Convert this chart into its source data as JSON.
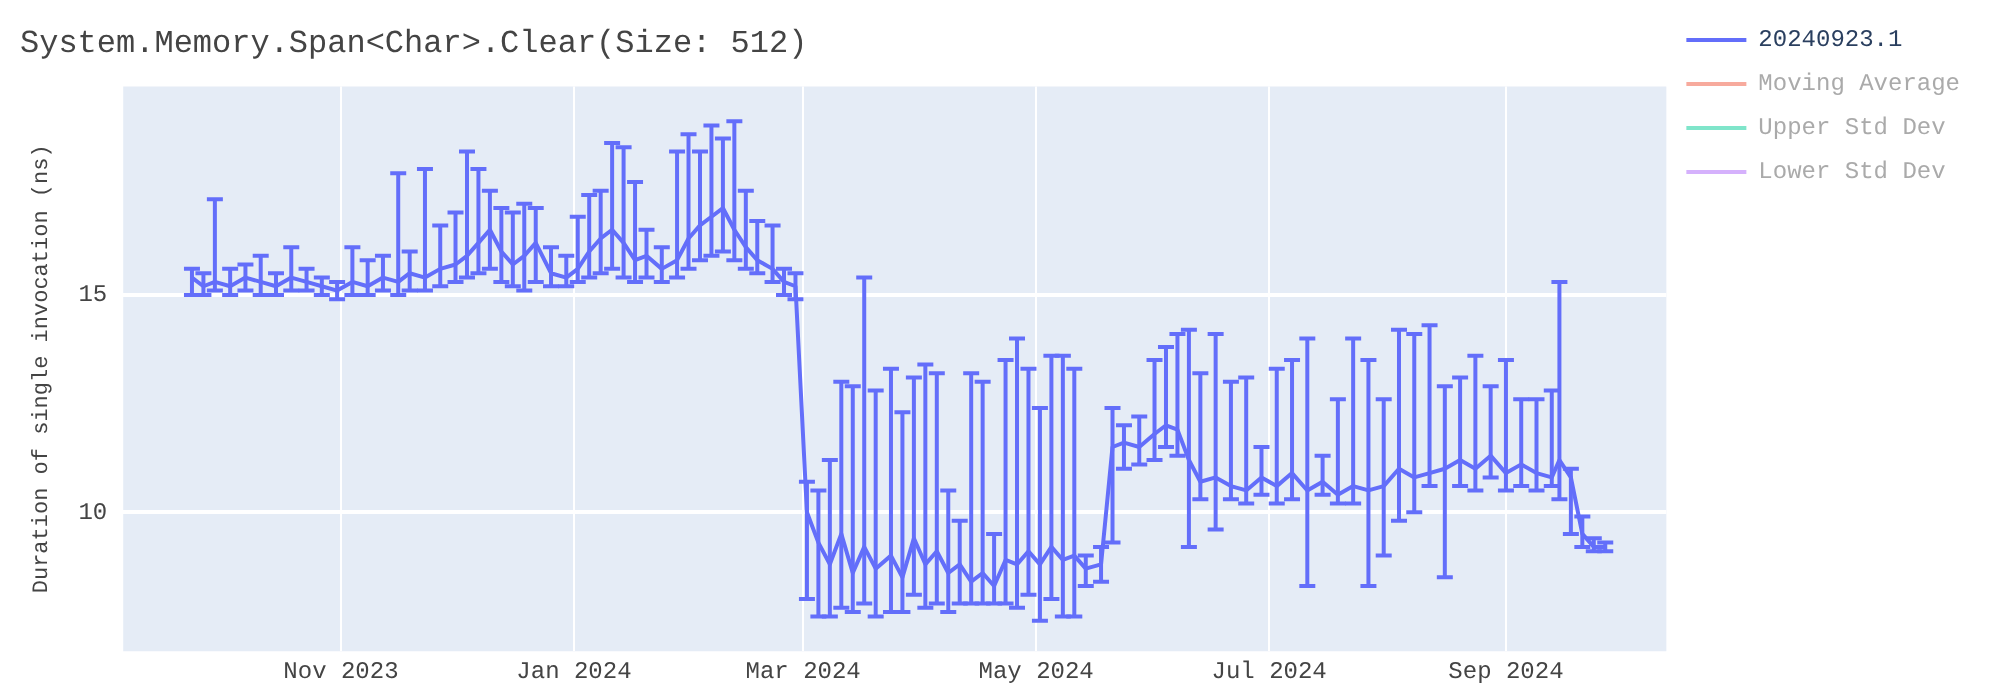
{
  "chart_data": {
    "type": "line",
    "title": "System.Memory.Span<Char>.Clear(Size: 512)",
    "ylabel": "Duration of single invocation (ns)",
    "grid": true,
    "legend": "top right",
    "marker": "none",
    "line_style": "solid",
    "xlim": [
      "2023-09-05",
      "2024-10-13"
    ],
    "xticks": [
      {
        "value": "2023-11-01",
        "label": "Nov 2023"
      },
      {
        "value": "2024-01-01",
        "label": "Jan 2024"
      },
      {
        "value": "2024-03-01",
        "label": "Mar 2024"
      },
      {
        "value": "2024-05-01",
        "label": "May 2024"
      },
      {
        "value": "2024-07-01",
        "label": "Jul 2024"
      },
      {
        "value": "2024-09-01",
        "label": "Sep 2024"
      }
    ],
    "ylim": [
      6.8,
      19.8
    ],
    "yticks": [
      10,
      15
    ],
    "x": [
      "2023-09-23",
      "2023-09-26",
      "2023-09-29",
      "2023-10-03",
      "2023-10-07",
      "2023-10-11",
      "2023-10-15",
      "2023-10-19",
      "2023-10-23",
      "2023-10-27",
      "2023-10-31",
      "2023-11-04",
      "2023-11-08",
      "2023-11-12",
      "2023-11-16",
      "2023-11-19",
      "2023-11-23",
      "2023-11-27",
      "2023-12-01",
      "2023-12-04",
      "2023-12-07",
      "2023-12-10",
      "2023-12-13",
      "2023-12-16",
      "2023-12-19",
      "2023-12-22",
      "2023-12-26",
      "2023-12-30",
      "2024-01-02",
      "2024-01-05",
      "2024-01-08",
      "2024-01-11",
      "2024-01-14",
      "2024-01-17",
      "2024-01-20",
      "2024-01-24",
      "2024-01-28",
      "2024-01-31",
      "2024-02-03",
      "2024-02-06",
      "2024-02-09",
      "2024-02-12",
      "2024-02-15",
      "2024-02-18",
      "2024-02-22",
      "2024-02-25",
      "2024-02-28",
      "2024-03-02",
      "2024-03-05",
      "2024-03-08",
      "2024-03-11",
      "2024-03-14",
      "2024-03-17",
      "2024-03-20",
      "2024-03-24",
      "2024-03-27",
      "2024-03-30",
      "2024-04-02",
      "2024-04-05",
      "2024-04-08",
      "2024-04-11",
      "2024-04-14",
      "2024-04-17",
      "2024-04-20",
      "2024-04-23",
      "2024-04-26",
      "2024-04-29",
      "2024-05-02",
      "2024-05-05",
      "2024-05-08",
      "2024-05-11",
      "2024-05-14",
      "2024-05-18",
      "2024-05-21",
      "2024-05-24",
      "2024-05-28",
      "2024-06-01",
      "2024-06-04",
      "2024-06-07",
      "2024-06-10",
      "2024-06-13",
      "2024-06-17",
      "2024-06-21",
      "2024-06-25",
      "2024-06-29",
      "2024-07-03",
      "2024-07-07",
      "2024-07-11",
      "2024-07-15",
      "2024-07-19",
      "2024-07-23",
      "2024-07-27",
      "2024-07-31",
      "2024-08-04",
      "2024-08-08",
      "2024-08-12",
      "2024-08-16",
      "2024-08-20",
      "2024-08-24",
      "2024-08-28",
      "2024-09-01",
      "2024-09-05",
      "2024-09-09",
      "2024-09-13",
      "2024-09-15",
      "2024-09-18",
      "2024-09-21",
      "2024-09-24",
      "2024-09-27"
    ],
    "series": [
      {
        "name": "20240923.1",
        "color": "#636efa",
        "values": [
          15.4,
          15.2,
          15.3,
          15.2,
          15.4,
          15.3,
          15.2,
          15.4,
          15.3,
          15.2,
          15.1,
          15.3,
          15.2,
          15.4,
          15.3,
          15.5,
          15.4,
          15.6,
          15.7,
          15.9,
          16.2,
          16.5,
          16.0,
          15.7,
          15.9,
          16.2,
          15.5,
          15.4,
          15.6,
          16.0,
          16.3,
          16.5,
          16.2,
          15.8,
          15.9,
          15.6,
          15.8,
          16.3,
          16.6,
          16.8,
          17.0,
          16.5,
          16.1,
          15.8,
          15.6,
          15.3,
          15.2,
          10.0,
          9.3,
          8.8,
          9.5,
          8.6,
          9.2,
          8.7,
          9.0,
          8.5,
          9.4,
          8.8,
          9.1,
          8.6,
          8.8,
          8.4,
          8.6,
          8.3,
          8.9,
          8.8,
          9.1,
          8.8,
          9.2,
          8.9,
          9.0,
          8.7,
          8.8,
          11.5,
          11.6,
          11.5,
          11.8,
          12.0,
          11.9,
          11.2,
          10.7,
          10.8,
          10.6,
          10.5,
          10.8,
          10.6,
          10.9,
          10.5,
          10.7,
          10.4,
          10.6,
          10.5,
          10.6,
          11.0,
          10.8,
          10.9,
          11.0,
          11.2,
          11.0,
          11.3,
          10.9,
          11.1,
          10.9,
          10.8,
          11.2,
          10.8,
          9.5,
          9.2,
          9.2
        ],
        "errors": [
          [
            15.0,
            15.6
          ],
          [
            15.0,
            15.5
          ],
          [
            15.1,
            17.2
          ],
          [
            15.0,
            15.6
          ],
          [
            15.1,
            15.7
          ],
          [
            15.0,
            15.9
          ],
          [
            15.0,
            15.5
          ],
          [
            15.1,
            16.1
          ],
          [
            15.1,
            15.6
          ],
          [
            15.0,
            15.4
          ],
          [
            14.9,
            15.3
          ],
          [
            15.0,
            16.1
          ],
          [
            15.0,
            15.8
          ],
          [
            15.1,
            15.9
          ],
          [
            15.0,
            17.8
          ],
          [
            15.1,
            16.0
          ],
          [
            15.1,
            17.9
          ],
          [
            15.2,
            16.6
          ],
          [
            15.3,
            16.9
          ],
          [
            15.4,
            18.3
          ],
          [
            15.5,
            17.9
          ],
          [
            15.6,
            17.4
          ],
          [
            15.3,
            17.0
          ],
          [
            15.2,
            16.9
          ],
          [
            15.1,
            17.1
          ],
          [
            15.3,
            17.0
          ],
          [
            15.2,
            16.1
          ],
          [
            15.2,
            15.9
          ],
          [
            15.3,
            16.8
          ],
          [
            15.4,
            17.3
          ],
          [
            15.5,
            17.4
          ],
          [
            15.6,
            18.5
          ],
          [
            15.4,
            18.4
          ],
          [
            15.3,
            17.6
          ],
          [
            15.4,
            16.5
          ],
          [
            15.3,
            16.1
          ],
          [
            15.4,
            18.3
          ],
          [
            15.6,
            18.7
          ],
          [
            15.8,
            18.3
          ],
          [
            15.9,
            18.9
          ],
          [
            16.0,
            18.6
          ],
          [
            15.8,
            19.0
          ],
          [
            15.6,
            17.4
          ],
          [
            15.5,
            16.7
          ],
          [
            15.3,
            16.6
          ],
          [
            15.0,
            15.6
          ],
          [
            14.9,
            15.5
          ],
          [
            8.0,
            10.7
          ],
          [
            7.6,
            10.5
          ],
          [
            7.6,
            11.2
          ],
          [
            7.8,
            13.0
          ],
          [
            7.7,
            12.9
          ],
          [
            7.9,
            15.4
          ],
          [
            7.6,
            12.8
          ],
          [
            7.7,
            13.3
          ],
          [
            7.7,
            12.3
          ],
          [
            8.1,
            13.1
          ],
          [
            7.8,
            13.4
          ],
          [
            7.9,
            13.2
          ],
          [
            7.7,
            10.5
          ],
          [
            7.9,
            9.8
          ],
          [
            7.9,
            13.2
          ],
          [
            7.9,
            13.0
          ],
          [
            7.9,
            9.5
          ],
          [
            7.9,
            13.5
          ],
          [
            7.8,
            14.0
          ],
          [
            8.1,
            13.3
          ],
          [
            7.5,
            12.4
          ],
          [
            8.0,
            13.6
          ],
          [
            7.6,
            13.6
          ],
          [
            7.6,
            13.3
          ],
          [
            8.3,
            9.0
          ],
          [
            8.4,
            9.2
          ],
          [
            9.3,
            12.4
          ],
          [
            11.0,
            12.0
          ],
          [
            11.1,
            12.2
          ],
          [
            11.2,
            13.5
          ],
          [
            11.5,
            13.8
          ],
          [
            11.3,
            14.1
          ],
          [
            9.2,
            14.2
          ],
          [
            10.3,
            13.2
          ],
          [
            9.6,
            14.1
          ],
          [
            10.3,
            13.0
          ],
          [
            10.2,
            13.1
          ],
          [
            10.4,
            11.5
          ],
          [
            10.2,
            13.3
          ],
          [
            10.3,
            13.5
          ],
          [
            8.3,
            14.0
          ],
          [
            10.4,
            11.3
          ],
          [
            10.2,
            12.6
          ],
          [
            10.2,
            14.0
          ],
          [
            8.3,
            13.5
          ],
          [
            9.0,
            12.6
          ],
          [
            9.8,
            14.2
          ],
          [
            10.0,
            14.1
          ],
          [
            10.6,
            14.3
          ],
          [
            8.5,
            12.9
          ],
          [
            10.6,
            13.1
          ],
          [
            10.5,
            13.6
          ],
          [
            10.8,
            12.9
          ],
          [
            10.5,
            13.5
          ],
          [
            10.6,
            12.6
          ],
          [
            10.5,
            12.6
          ],
          [
            10.6,
            12.8
          ],
          [
            10.3,
            15.3
          ],
          [
            9.5,
            11.0
          ],
          [
            9.2,
            9.9
          ],
          [
            9.1,
            9.4
          ],
          [
            9.1,
            9.3
          ]
        ]
      },
      {
        "name": "Moving Average",
        "color": "#ef553b",
        "values": [
          null,
          null,
          null,
          null,
          null,
          null,
          null,
          null,
          null,
          null,
          null,
          null,
          null,
          null,
          null,
          null,
          null,
          null,
          null,
          null,
          null,
          null,
          null,
          null,
          null,
          null,
          null,
          null,
          null,
          null,
          null,
          null,
          null,
          null,
          null,
          null,
          null,
          null,
          null,
          null,
          null,
          null,
          null,
          null,
          null,
          null,
          null,
          null,
          null,
          null,
          null,
          null,
          null,
          null,
          null,
          null,
          null,
          null,
          null,
          null,
          null,
          null,
          null,
          null,
          null,
          null,
          null,
          null,
          null,
          null,
          null,
          null,
          null,
          null,
          null,
          null,
          null,
          null,
          null,
          null,
          null,
          null,
          null,
          null,
          null,
          null,
          null,
          null,
          null,
          null,
          null,
          null,
          null,
          null,
          null,
          null,
          null,
          null,
          null,
          null,
          null,
          null,
          null,
          null,
          null,
          null,
          null,
          null,
          null
        ]
      },
      {
        "name": "Upper Std Dev",
        "color": "#00cc96",
        "values": [
          null,
          null,
          null,
          null,
          null,
          null,
          null,
          null,
          null,
          null,
          null,
          null,
          null,
          null,
          null,
          null,
          null,
          null,
          null,
          null,
          null,
          null,
          null,
          null,
          null,
          null,
          null,
          null,
          null,
          null,
          null,
          null,
          null,
          null,
          null,
          null,
          null,
          null,
          null,
          null,
          null,
          null,
          null,
          null,
          null,
          null,
          null,
          null,
          null,
          null,
          null,
          null,
          null,
          null,
          null,
          null,
          null,
          null,
          null,
          null,
          null,
          null,
          null,
          null,
          null,
          null,
          null,
          null,
          null,
          null,
          null,
          null,
          null,
          null,
          null,
          null,
          null,
          null,
          null,
          null,
          null,
          null,
          null,
          null,
          null,
          null,
          null,
          null,
          null,
          null,
          null,
          null,
          null,
          null,
          null,
          null,
          null,
          null,
          null,
          null,
          null,
          null,
          null,
          null,
          null,
          null,
          null,
          null,
          null
        ]
      },
      {
        "name": "Lower Std Dev",
        "color": "#ab63fa",
        "values": [
          null,
          null,
          null,
          null,
          null,
          null,
          null,
          null,
          null,
          null,
          null,
          null,
          null,
          null,
          null,
          null,
          null,
          null,
          null,
          null,
          null,
          null,
          null,
          null,
          null,
          null,
          null,
          null,
          null,
          null,
          null,
          null,
          null,
          null,
          null,
          null,
          null,
          null,
          null,
          null,
          null,
          null,
          null,
          null,
          null,
          null,
          null,
          null,
          null,
          null,
          null,
          null,
          null,
          null,
          null,
          null,
          null,
          null,
          null,
          null,
          null,
          null,
          null,
          null,
          null,
          null,
          null,
          null,
          null,
          null,
          null,
          null,
          null,
          null,
          null,
          null,
          null,
          null,
          null,
          null,
          null,
          null,
          null,
          null,
          null,
          null,
          null,
          null,
          null,
          null,
          null,
          null,
          null,
          null,
          null,
          null,
          null,
          null,
          null,
          null,
          null,
          null,
          null,
          null,
          null,
          null,
          null,
          null,
          null
        ]
      }
    ]
  }
}
